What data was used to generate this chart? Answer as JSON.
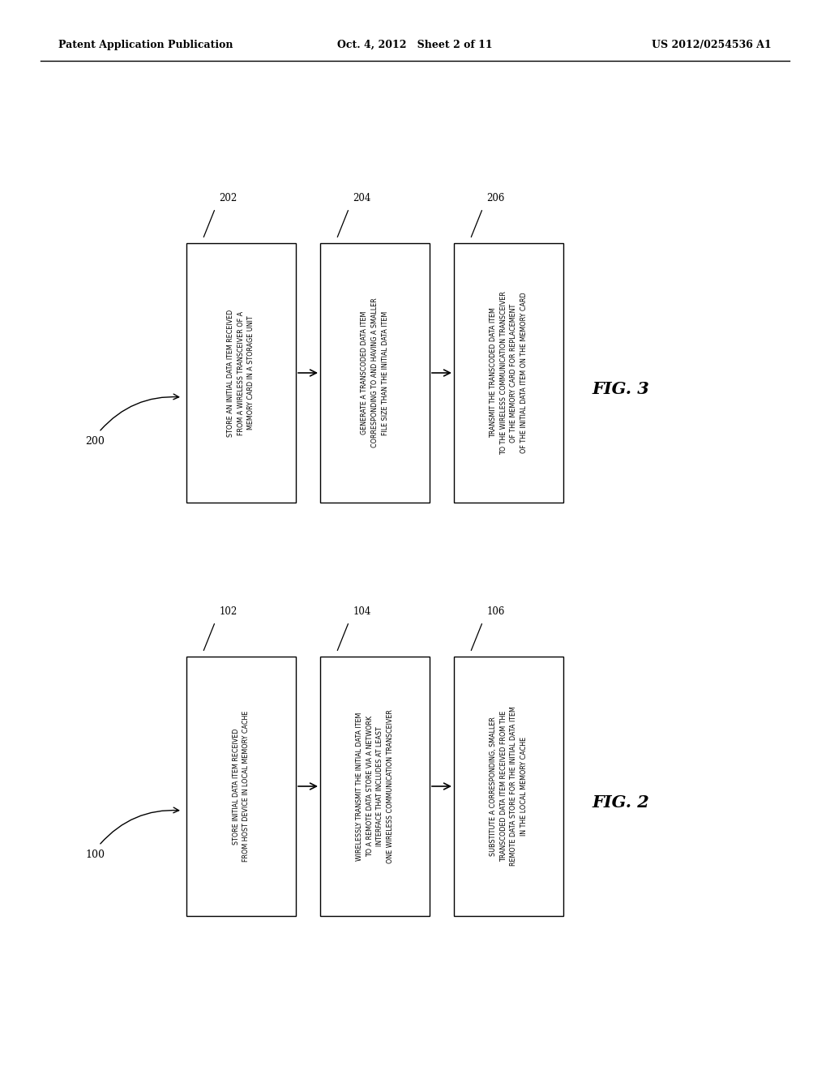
{
  "header_left": "Patent Application Publication",
  "header_mid": "Oct. 4, 2012   Sheet 2 of 11",
  "header_right": "US 2012/0254536 A1",
  "bg_color": "#ffffff",
  "line_color": "#000000",
  "text_color": "#000000",
  "fig3": {
    "label": "FIG. 3",
    "group_label": "200",
    "boxes": [
      {
        "id": "202",
        "text": "STORE AN INITIAL DATA ITEM RECEIVED\nFROM A WIRELESS TRANSCEIVER OF A\nMEMORY CARD IN A STORAGE UNIT"
      },
      {
        "id": "204",
        "text": "GENERATE A TRANSCODED DATA ITEM\nCORRESPONDING TO AND HAVING A SMALLER\nFILE SIZE THAN THE INITIAL DATA ITEM"
      },
      {
        "id": "206",
        "text": "TRANSMIT THE TRANSCODED DATA ITEM\nTO THE WIRELESS COMMUNICATION TRANSCEIVER\nOF THE MEMORY CARD FOR REPLACEMENT\nOF THE INITIAL DATA ITEM ON THE MEMORY CARD"
      }
    ]
  },
  "fig2": {
    "label": "FIG. 2",
    "group_label": "100",
    "boxes": [
      {
        "id": "102",
        "text": "STORE INITIAL DATA ITEM RECEIVED\nFROM HOST DEVICE IN LOCAL MEMORY CACHE"
      },
      {
        "id": "104",
        "text": "WIRELESSLY TRANSMIT THE INITIAL DATA ITEM\nTO A REMOTE DATA STORE VIA A NETWORK\nINTERFACE THAT INCLUDES AT LEAST\nONE WIRELESS COMMUNICATION TRANSCEIVER"
      },
      {
        "id": "106",
        "text": "SUBSTITUTE A CORRESPONDING, SMALLER\nTRANSCODED DATA ITEM RECEIVED FROM THE\nREMOTE DATA STORE FOR THE INITIAL DATA ITEM\nIN THE LOCAL MEMORY CACHE"
      }
    ]
  }
}
